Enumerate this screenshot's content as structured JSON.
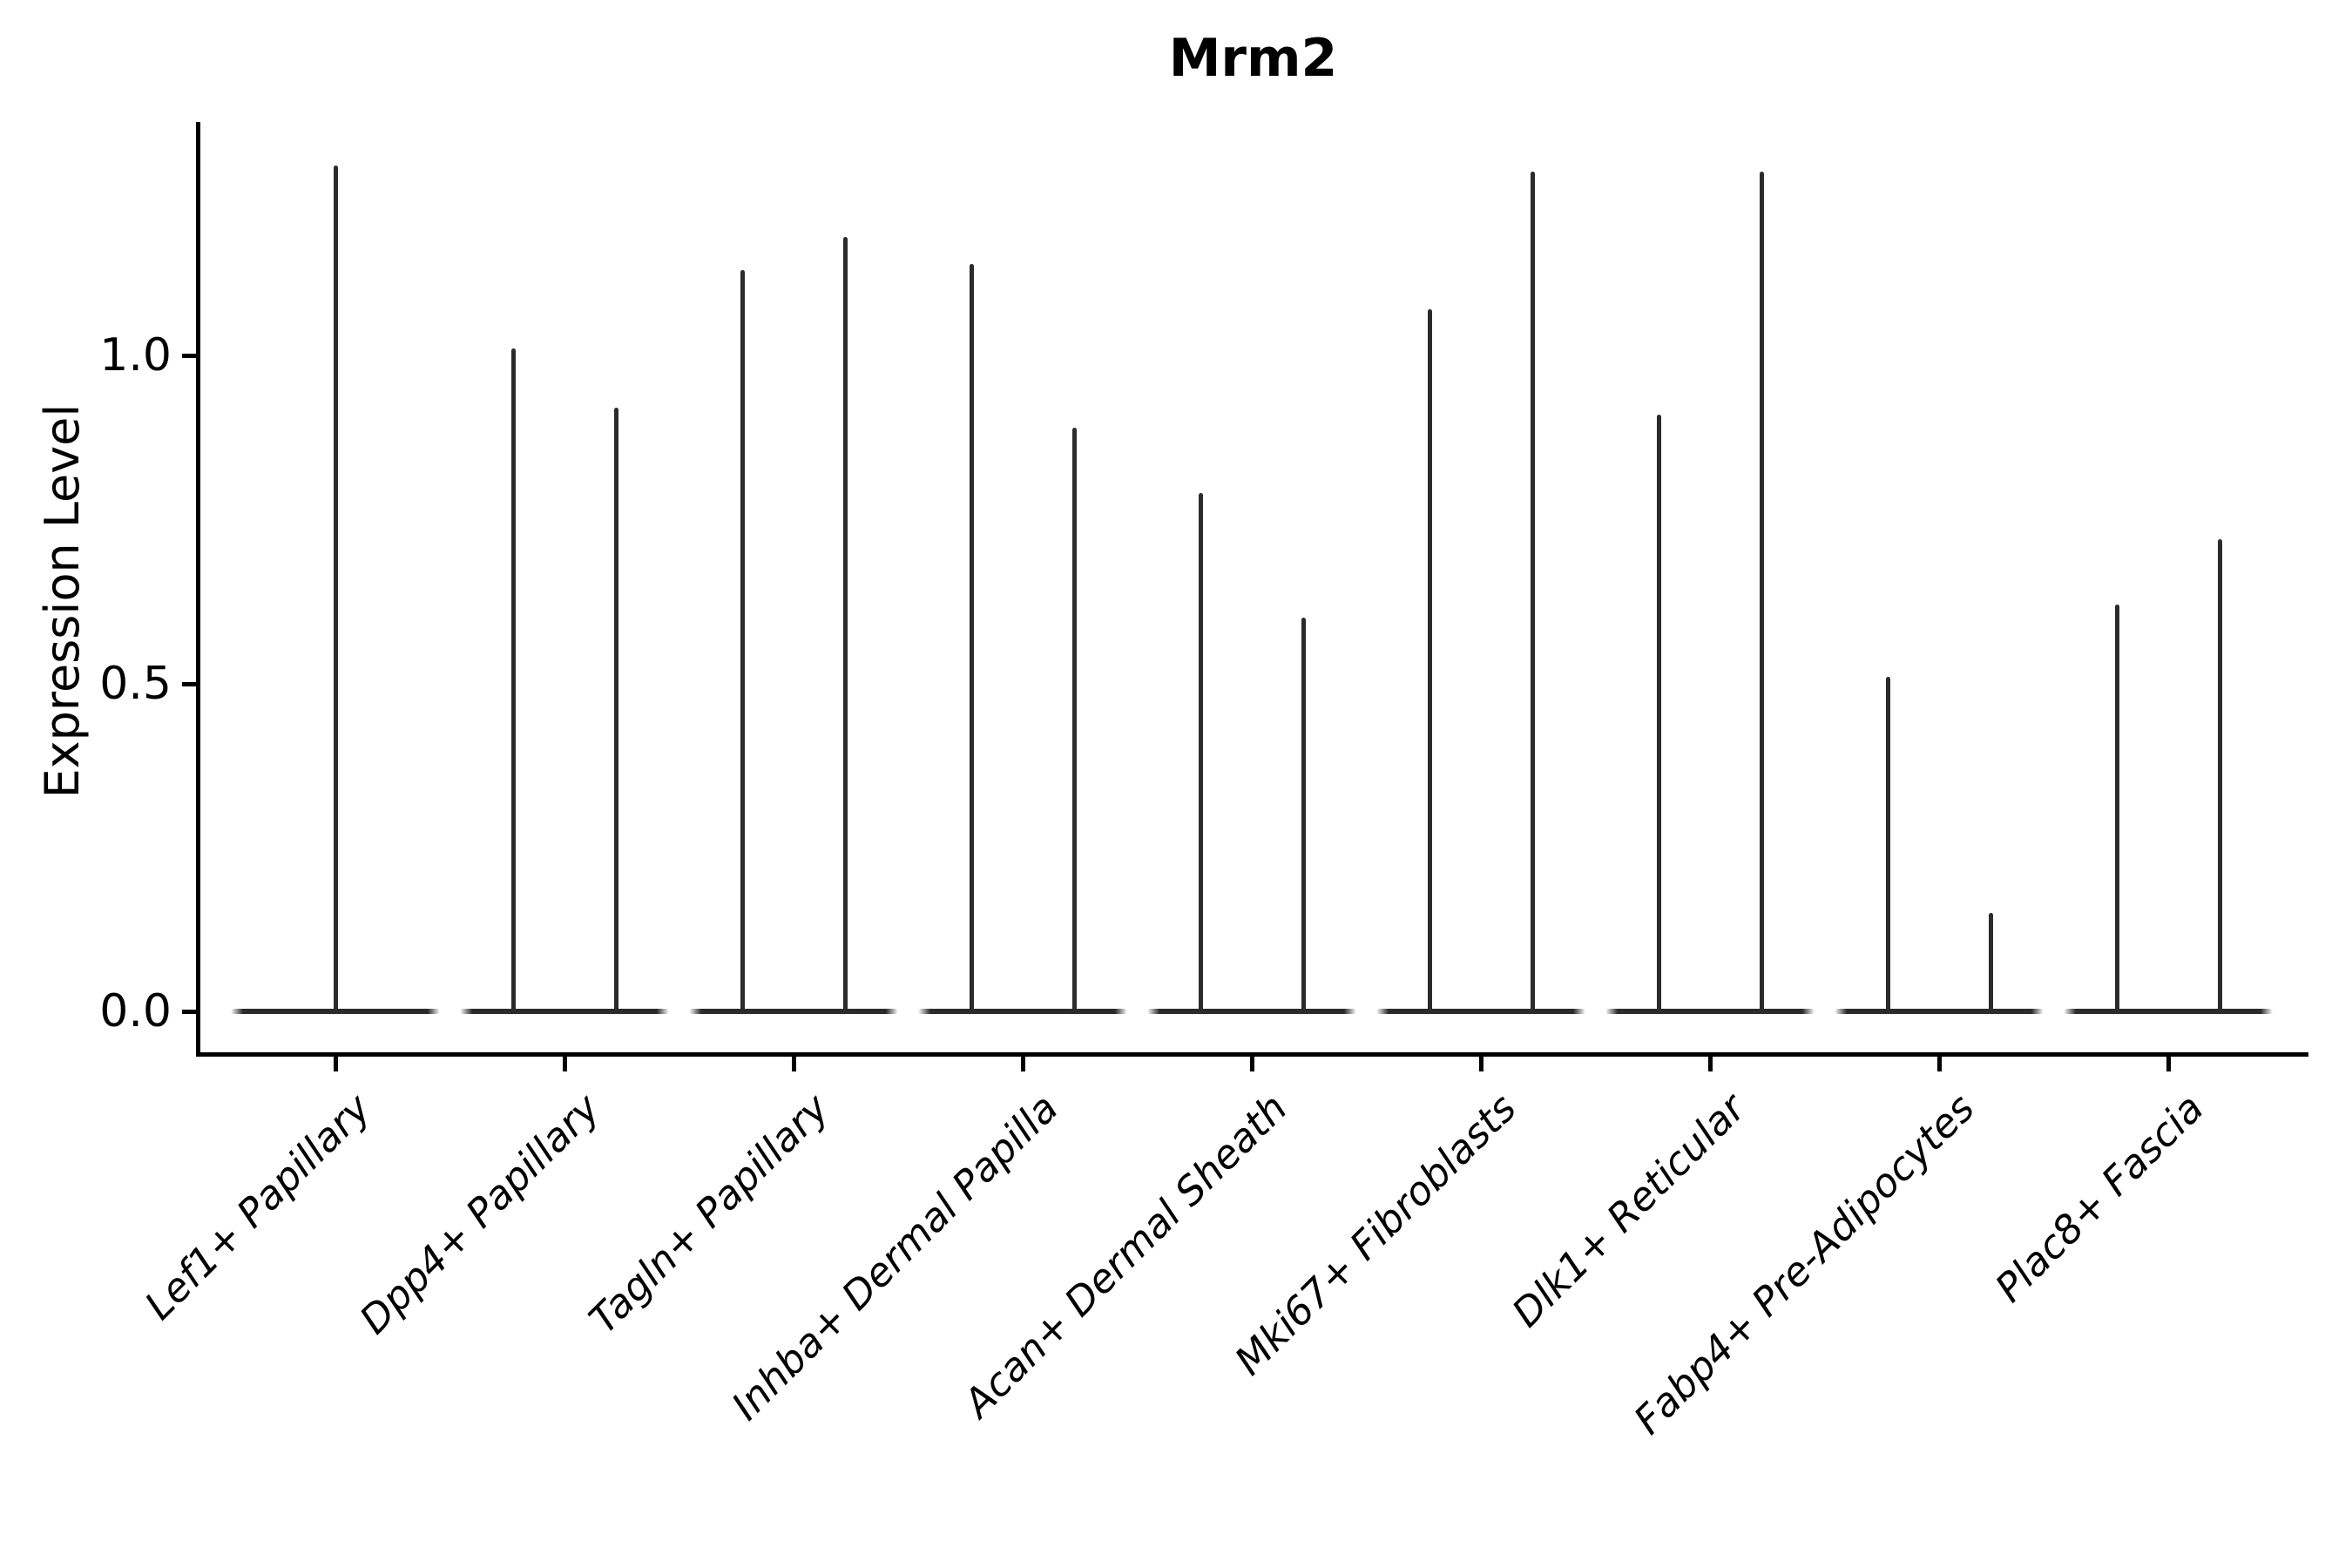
{
  "chart_data": {
    "type": "violin",
    "title": "Mrm2",
    "ylabel": "Expression Level",
    "xlabel": "",
    "yticks": [
      "0.0",
      "0.5",
      "1.0"
    ],
    "ytick_values": [
      0.0,
      0.5,
      1.0
    ],
    "ylim": [
      -0.065,
      1.356
    ],
    "grid": false,
    "legend": null,
    "baseline_value": 0.0,
    "categories": [
      "Lef1+ Papillary",
      "Dpp4+ Papillary",
      "Tagln+ Papillary",
      "Inhba+ Dermal Papilla",
      "Acan+ Dermal Sheath",
      "Mki67+ Fibroblasts",
      "Dlk1+ Reticular",
      "Fabp4+ Pre-Adipocytes",
      "Plac8+ Fascia"
    ],
    "violins": [
      {
        "category": "Lef1+ Papillary",
        "spike_maxima": [
          1.29
        ]
      },
      {
        "category": "Dpp4+ Papillary",
        "spike_maxima": [
          1.01,
          0.92
        ]
      },
      {
        "category": "Tagln+ Papillary",
        "spike_maxima": [
          1.13,
          1.18
        ]
      },
      {
        "category": "Inhba+ Dermal Papilla",
        "spike_maxima": [
          1.14,
          0.89
        ]
      },
      {
        "category": "Acan+ Dermal Sheath",
        "spike_maxima": [
          0.79,
          0.6
        ]
      },
      {
        "category": "Mki67+ Fibroblasts",
        "spike_maxima": [
          1.07,
          1.28
        ]
      },
      {
        "category": "Dlk1+ Reticular",
        "spike_maxima": [
          0.91,
          1.28
        ]
      },
      {
        "category": "Fabp4+ Pre-Adipocytes",
        "spike_maxima": [
          0.51,
          0.15
        ]
      },
      {
        "category": "Plac8+ Fascia",
        "spike_maxima": [
          0.62,
          0.72
        ]
      }
    ],
    "colors": {
      "violin_line": "#2b2b2b",
      "axis": "#000000",
      "text": "#000000",
      "background": "#ffffff"
    }
  }
}
